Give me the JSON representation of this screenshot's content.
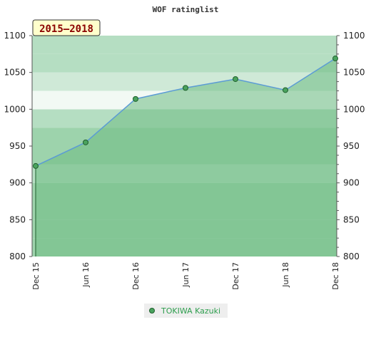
{
  "colors": {
    "band_dark": "#7cc493",
    "band_mid": "#9dd3ac",
    "band_light": "#b5dec2",
    "band_lighter": "#cfe9d7",
    "band_pale": "#f2f9f4",
    "area_fill": "#6dbb84",
    "line": "#5b9bd5",
    "marker_fill": "#4aa35e",
    "marker_stroke": "#1f5f2d",
    "legend_bg": "#eeeeee",
    "period_bg": "#ffffcc"
  },
  "chart_data": {
    "type": "area",
    "title": "WOF ratinglist",
    "period_label": "2015–2018",
    "x": [
      "Dec 15",
      "Jun 16",
      "Dec 16",
      "Jun 17",
      "Dec 17",
      "Jun 18",
      "Dec 18"
    ],
    "series": [
      {
        "name": "TOKIWA Kazuki",
        "values": [
          923,
          955,
          1014,
          1029,
          1041,
          1026,
          1069
        ]
      }
    ],
    "ylim": [
      800,
      1100
    ],
    "yticks": [
      800,
      850,
      900,
      950,
      1000,
      1050,
      1100
    ],
    "y_axes": "left-and-right",
    "xlabel": "",
    "ylabel": "",
    "legend_position": "bottom-center"
  }
}
